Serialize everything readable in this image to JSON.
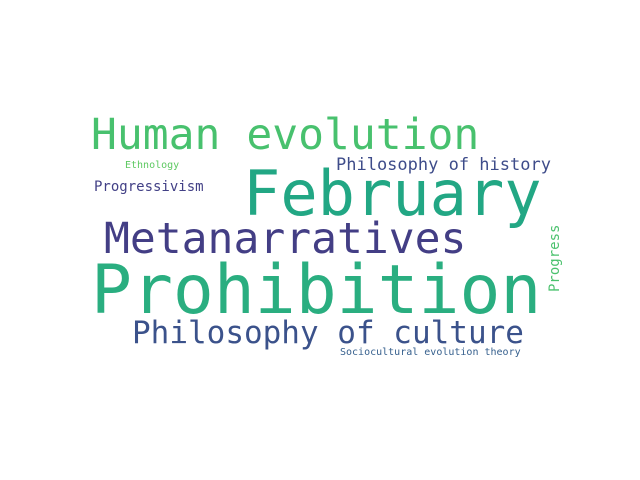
{
  "words": {
    "human_evolution": {
      "text": "Human evolution",
      "color": "#48c16e"
    },
    "february": {
      "text": "February",
      "color": "#22a784"
    },
    "metanarratives": {
      "text": "Metanarratives",
      "color": "#433e85"
    },
    "prohibition": {
      "text": "Prohibition",
      "color": "#2aae80"
    },
    "philosophy_of_culture": {
      "text": "Philosophy of culture",
      "color": "#3b528b"
    },
    "philosophy_of_history": {
      "text": "Philosophy of history",
      "color": "#3e4c8a"
    },
    "progressivism": {
      "text": "Progressivism",
      "color": "#424086"
    },
    "ethnology": {
      "text": "Ethnology",
      "color": "#5ec962"
    },
    "sociocultural_evolution_theory": {
      "text": "Sociocultural evolution theory",
      "color": "#355f8d"
    },
    "progress": {
      "text": "Progress",
      "color": "#4ac16d"
    }
  }
}
